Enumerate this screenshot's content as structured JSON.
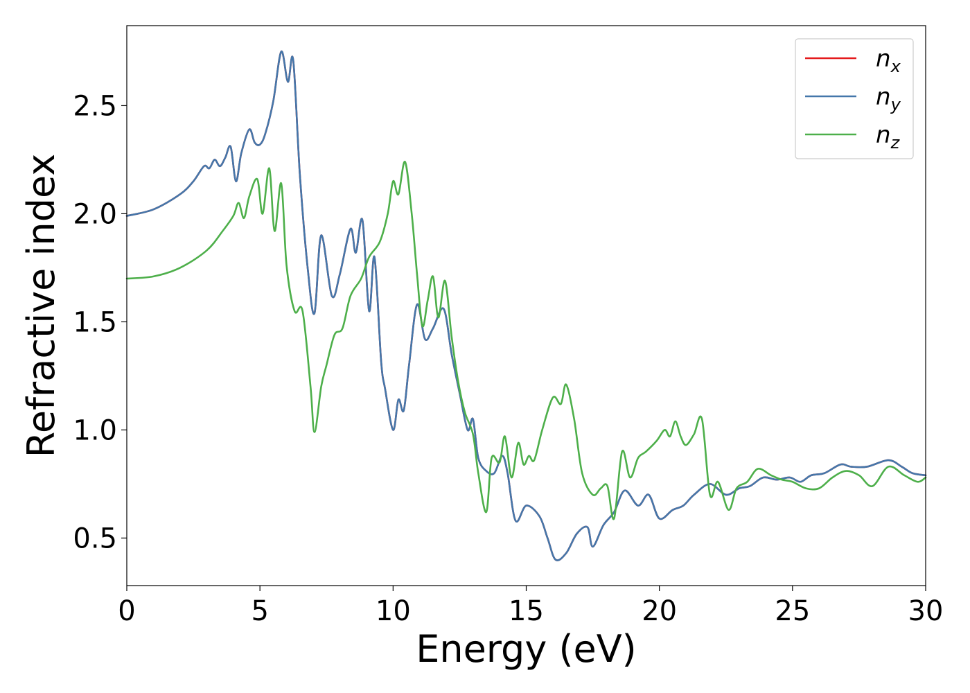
{
  "chart_data": {
    "type": "line",
    "xlabel": "Energy (eV)",
    "ylabel": "Refractive index",
    "xlim": [
      0,
      30
    ],
    "ylim": [
      0.28,
      2.87
    ],
    "xticks": [
      0,
      5,
      10,
      15,
      20,
      25,
      30
    ],
    "xtick_labels": [
      "0",
      "5",
      "10",
      "15",
      "20",
      "25",
      "30"
    ],
    "yticks": [
      0.5,
      1.0,
      1.5,
      2.0,
      2.5
    ],
    "ytick_labels": [
      "0.5",
      "1.0",
      "1.5",
      "2.0",
      "2.5"
    ],
    "grid": false,
    "legend_position": "top-right",
    "series": [
      {
        "name": "n_x",
        "label_main": "n",
        "label_sub": "x",
        "color": "#e41a1c",
        "x": [
          0,
          1,
          2,
          2.5,
          2.9,
          3.1,
          3.3,
          3.5,
          3.7,
          3.9,
          4.1,
          4.3,
          4.6,
          4.8,
          5.0,
          5.2,
          5.5,
          5.8,
          6.05,
          6.25,
          6.5,
          6.8,
          7.05,
          7.3,
          7.7,
          8.0,
          8.4,
          8.6,
          8.85,
          9.1,
          9.3,
          9.55,
          9.7,
          10.0,
          10.2,
          10.4,
          10.6,
          10.9,
          11.2,
          11.5,
          11.9,
          12.2,
          12.5,
          12.8,
          13.0,
          13.2,
          13.5,
          13.8,
          14.1,
          14.3,
          14.6,
          15.0,
          15.5,
          15.8,
          16.1,
          16.5,
          16.9,
          17.3,
          17.5,
          17.9,
          18.3,
          18.7,
          19.2,
          19.6,
          20.0,
          20.5,
          20.9,
          21.3,
          21.9,
          22.5,
          23.0,
          23.4,
          23.9,
          24.4,
          24.9,
          25.3,
          25.7,
          26.2,
          26.8,
          27.2,
          27.8,
          28.6,
          29.1,
          29.5,
          30.0
        ],
        "values": [
          1.99,
          2.02,
          2.09,
          2.15,
          2.22,
          2.21,
          2.25,
          2.22,
          2.26,
          2.31,
          2.15,
          2.28,
          2.39,
          2.33,
          2.32,
          2.37,
          2.52,
          2.75,
          2.61,
          2.71,
          2.18,
          1.74,
          1.54,
          1.9,
          1.62,
          1.72,
          1.93,
          1.82,
          1.97,
          1.55,
          1.8,
          1.32,
          1.19,
          1.0,
          1.14,
          1.09,
          1.3,
          1.58,
          1.42,
          1.47,
          1.56,
          1.35,
          1.17,
          1.0,
          1.05,
          0.87,
          0.81,
          0.8,
          0.88,
          0.8,
          0.58,
          0.65,
          0.6,
          0.5,
          0.4,
          0.43,
          0.52,
          0.55,
          0.46,
          0.56,
          0.62,
          0.72,
          0.65,
          0.7,
          0.59,
          0.63,
          0.65,
          0.7,
          0.75,
          0.7,
          0.73,
          0.74,
          0.78,
          0.77,
          0.78,
          0.76,
          0.79,
          0.8,
          0.84,
          0.83,
          0.83,
          0.86,
          0.83,
          0.8,
          0.79
        ]
      },
      {
        "name": "n_y",
        "label_main": "n",
        "label_sub": "y",
        "color": "#4477aa",
        "x": [
          0,
          1,
          2,
          2.5,
          2.9,
          3.1,
          3.3,
          3.5,
          3.7,
          3.9,
          4.1,
          4.3,
          4.6,
          4.8,
          5.0,
          5.2,
          5.5,
          5.8,
          6.05,
          6.25,
          6.5,
          6.8,
          7.05,
          7.3,
          7.7,
          8.0,
          8.4,
          8.6,
          8.85,
          9.1,
          9.3,
          9.55,
          9.7,
          10.0,
          10.2,
          10.4,
          10.6,
          10.9,
          11.2,
          11.5,
          11.9,
          12.2,
          12.5,
          12.8,
          13.0,
          13.2,
          13.5,
          13.8,
          14.1,
          14.3,
          14.6,
          15.0,
          15.5,
          15.8,
          16.1,
          16.5,
          16.9,
          17.3,
          17.5,
          17.9,
          18.3,
          18.7,
          19.2,
          19.6,
          20.0,
          20.5,
          20.9,
          21.3,
          21.9,
          22.5,
          23.0,
          23.4,
          23.9,
          24.4,
          24.9,
          25.3,
          25.7,
          26.2,
          26.8,
          27.2,
          27.8,
          28.6,
          29.1,
          29.5,
          30.0
        ],
        "values": [
          1.99,
          2.02,
          2.09,
          2.15,
          2.22,
          2.21,
          2.25,
          2.22,
          2.26,
          2.31,
          2.15,
          2.28,
          2.39,
          2.33,
          2.32,
          2.37,
          2.52,
          2.75,
          2.61,
          2.71,
          2.18,
          1.74,
          1.54,
          1.9,
          1.62,
          1.72,
          1.93,
          1.82,
          1.97,
          1.55,
          1.8,
          1.32,
          1.19,
          1.0,
          1.14,
          1.09,
          1.3,
          1.58,
          1.42,
          1.47,
          1.56,
          1.35,
          1.17,
          1.0,
          1.05,
          0.87,
          0.81,
          0.8,
          0.88,
          0.8,
          0.58,
          0.65,
          0.6,
          0.5,
          0.4,
          0.43,
          0.52,
          0.55,
          0.46,
          0.56,
          0.62,
          0.72,
          0.65,
          0.7,
          0.59,
          0.63,
          0.65,
          0.7,
          0.75,
          0.7,
          0.73,
          0.74,
          0.78,
          0.77,
          0.78,
          0.76,
          0.79,
          0.8,
          0.84,
          0.83,
          0.83,
          0.86,
          0.83,
          0.8,
          0.79
        ]
      },
      {
        "name": "n_z",
        "label_main": "n",
        "label_sub": "z",
        "color": "#4daf4a",
        "x": [
          0,
          1,
          2,
          3,
          3.6,
          4.0,
          4.2,
          4.4,
          4.6,
          4.9,
          5.1,
          5.35,
          5.55,
          5.8,
          6.0,
          6.3,
          6.6,
          6.9,
          7.05,
          7.3,
          7.5,
          7.8,
          8.1,
          8.4,
          8.8,
          9.1,
          9.5,
          9.8,
          10.0,
          10.2,
          10.45,
          10.7,
          10.9,
          11.1,
          11.3,
          11.5,
          11.7,
          11.95,
          12.2,
          12.45,
          12.7,
          13.0,
          13.2,
          13.5,
          13.7,
          14.0,
          14.2,
          14.45,
          14.7,
          14.9,
          15.1,
          15.3,
          15.6,
          16.0,
          16.3,
          16.5,
          16.8,
          17.1,
          17.5,
          17.8,
          18.05,
          18.3,
          18.6,
          18.9,
          19.2,
          19.5,
          19.9,
          20.2,
          20.4,
          20.6,
          20.8,
          21.0,
          21.3,
          21.6,
          21.9,
          22.2,
          22.6,
          22.9,
          23.3,
          23.7,
          24.2,
          24.6,
          25.0,
          25.5,
          26.0,
          26.5,
          27.0,
          27.5,
          28.0,
          28.6,
          29.2,
          29.7,
          30.0
        ],
        "values": [
          1.7,
          1.71,
          1.75,
          1.83,
          1.92,
          1.99,
          2.05,
          1.98,
          2.08,
          2.16,
          2.0,
          2.21,
          1.92,
          2.14,
          1.76,
          1.55,
          1.55,
          1.2,
          0.99,
          1.2,
          1.3,
          1.44,
          1.47,
          1.62,
          1.7,
          1.8,
          1.87,
          2.0,
          2.15,
          2.09,
          2.24,
          2.0,
          1.72,
          1.48,
          1.6,
          1.71,
          1.52,
          1.69,
          1.43,
          1.22,
          1.08,
          0.98,
          0.8,
          0.62,
          0.87,
          0.85,
          0.97,
          0.78,
          0.94,
          0.84,
          0.88,
          0.86,
          1.0,
          1.15,
          1.12,
          1.21,
          1.05,
          0.8,
          0.7,
          0.73,
          0.74,
          0.59,
          0.9,
          0.78,
          0.87,
          0.9,
          0.95,
          1.0,
          0.97,
          1.04,
          0.97,
          0.93,
          0.98,
          1.05,
          0.7,
          0.76,
          0.63,
          0.73,
          0.76,
          0.82,
          0.79,
          0.77,
          0.76,
          0.73,
          0.73,
          0.78,
          0.81,
          0.79,
          0.74,
          0.83,
          0.79,
          0.76,
          0.78
        ]
      }
    ]
  }
}
